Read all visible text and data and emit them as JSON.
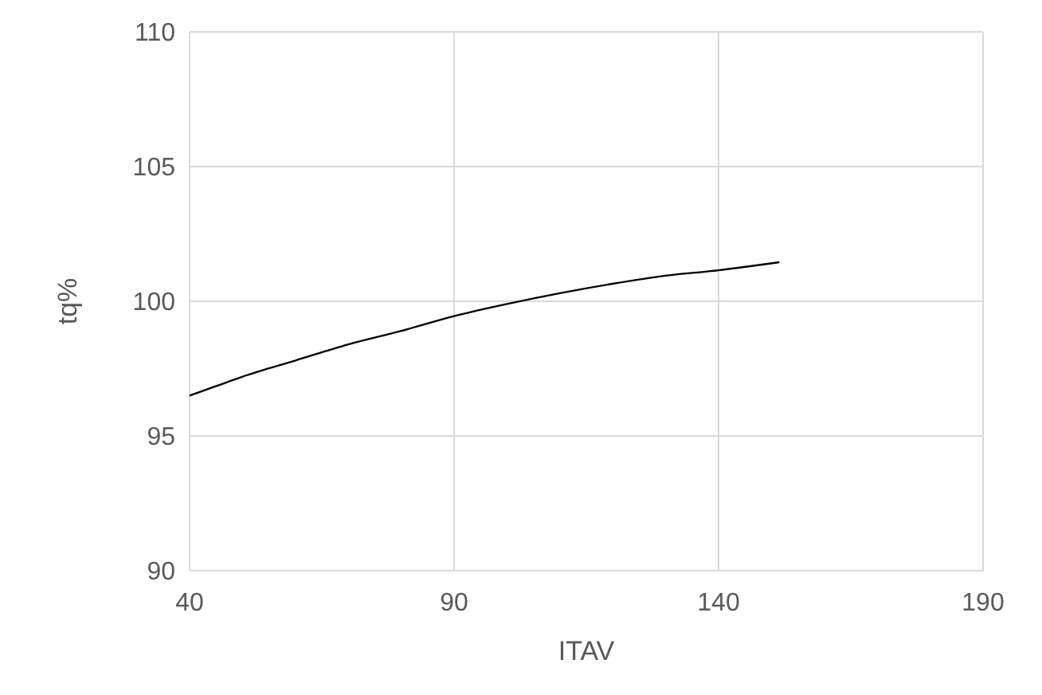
{
  "chart_data": {
    "type": "line",
    "xlabel": "ITAV",
    "ylabel": "tq%",
    "xlim": [
      40,
      190
    ],
    "xticks": [
      40,
      90,
      140,
      190
    ],
    "ylim": [
      90,
      110
    ],
    "yticks": [
      90,
      95,
      100,
      105,
      110
    ],
    "grid": true,
    "marker": "none",
    "line_style": "solid",
    "series": [
      {
        "color": "#000000",
        "x": [
          40,
          45,
          50,
          60,
          70,
          80,
          90,
          100,
          110,
          120,
          130,
          140,
          151.5
        ],
        "values": [
          96.5,
          96.85,
          97.2,
          97.8,
          98.4,
          98.9,
          99.45,
          99.9,
          100.3,
          100.65,
          100.95,
          101.15,
          101.45
        ]
      }
    ]
  }
}
